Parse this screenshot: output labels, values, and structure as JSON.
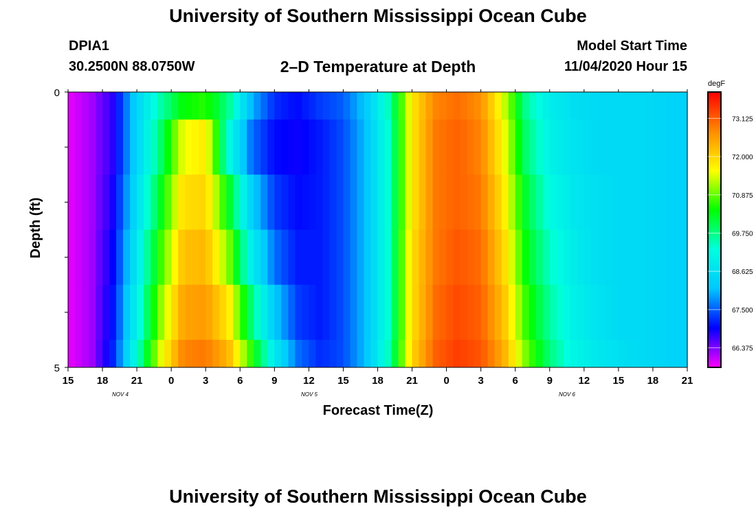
{
  "header": {
    "title": "University of Southern Mississippi Ocean Cube",
    "station_id": "DPIA1",
    "station_coords": "30.2500N 88.0750W",
    "plot_title": "2–D Temperature at Depth",
    "model_label": "Model Start Time",
    "model_date": "11/04/2020 Hour 15"
  },
  "footer": {
    "title": "University of Southern Mississippi Ocean Cube"
  },
  "chart_data": {
    "type": "heatmap",
    "xlabel": "Forecast Time(Z)",
    "ylabel": "Depth (ft)",
    "x_tick_labels": [
      "15",
      "18",
      "21",
      "0",
      "3",
      "6",
      "9",
      "12",
      "15",
      "18",
      "21",
      "0",
      "3",
      "6",
      "9",
      "12",
      "15",
      "18",
      "21"
    ],
    "date_labels": [
      "NOV 4",
      "NOV 5",
      "NOV 6"
    ],
    "y_tick_labels": [
      "0",
      "5"
    ],
    "ylim": [
      0,
      5
    ],
    "colorbar": {
      "unit": "degF",
      "tick_labels": [
        "73.125",
        "72.000",
        "70.875",
        "69.750",
        "68.625",
        "67.500",
        "66.375"
      ],
      "range": [
        65.8,
        73.9
      ],
      "colors": [
        "#ff00ff",
        "#0000ff",
        "#00c8ff",
        "#00ffe0",
        "#00ff00",
        "#ffff00",
        "#ff8c00",
        "#ff0000"
      ]
    },
    "x_hours": [
      0,
      3,
      6,
      9,
      12,
      15,
      18,
      21,
      24,
      27,
      30,
      33,
      36,
      39,
      42,
      45,
      48,
      51,
      54
    ],
    "depth_rows": [
      "0-0.5 ft",
      "0.5-1.5 ft",
      "1.5-2.5 ft",
      "2.5-3.5 ft",
      "3.5-4.5 ft",
      "4.5-5 ft"
    ],
    "temperature_profile_degF": [
      [
        65.9,
        66.2,
        66.8,
        68.4,
        69.5,
        70.4,
        70.6,
        69.7,
        68.0,
        67.2,
        67.0,
        67.3,
        67.5,
        68.2,
        69.5,
        71.8,
        72.8,
        73.0,
        72.7,
        71.4,
        69.6,
        68.9,
        68.6,
        68.5,
        68.5,
        68.5,
        68.4
      ],
      [
        65.9,
        66.2,
        66.8,
        68.4,
        69.8,
        71.5,
        71.8,
        69.2,
        67.6,
        67.0,
        66.9,
        67.1,
        67.4,
        68.1,
        69.4,
        71.8,
        72.9,
        73.1,
        72.8,
        71.6,
        69.8,
        69.0,
        68.7,
        68.5,
        68.5,
        68.5,
        68.4
      ],
      [
        65.9,
        66.2,
        66.9,
        68.6,
        70.2,
        71.9,
        72.0,
        70.3,
        68.3,
        67.3,
        67.0,
        67.1,
        67.4,
        68.1,
        69.4,
        71.8,
        72.9,
        73.1,
        72.9,
        71.8,
        70.1,
        69.2,
        68.8,
        68.6,
        68.5,
        68.5,
        68.4
      ],
      [
        65.9,
        66.2,
        67.0,
        68.8,
        70.6,
        72.2,
        72.3,
        71.0,
        68.9,
        67.6,
        67.1,
        67.1,
        67.4,
        68.1,
        69.4,
        71.9,
        72.9,
        73.2,
        73.0,
        72.0,
        70.3,
        69.4,
        68.9,
        68.6,
        68.5,
        68.5,
        68.4
      ],
      [
        65.9,
        66.2,
        67.1,
        69.0,
        71.0,
        72.5,
        72.6,
        71.8,
        69.8,
        68.2,
        67.3,
        67.1,
        67.4,
        68.1,
        69.4,
        71.9,
        73.0,
        73.3,
        73.1,
        72.2,
        70.6,
        69.6,
        69.0,
        68.7,
        68.5,
        68.5,
        68.4
      ],
      [
        65.9,
        66.2,
        67.2,
        69.3,
        71.4,
        72.8,
        72.9,
        72.3,
        70.6,
        68.8,
        67.6,
        67.2,
        67.4,
        68.1,
        69.5,
        72.0,
        73.1,
        73.4,
        73.2,
        72.4,
        70.9,
        69.8,
        69.1,
        68.8,
        68.6,
        68.5,
        68.4
      ]
    ],
    "profile_step_hours": 2
  }
}
